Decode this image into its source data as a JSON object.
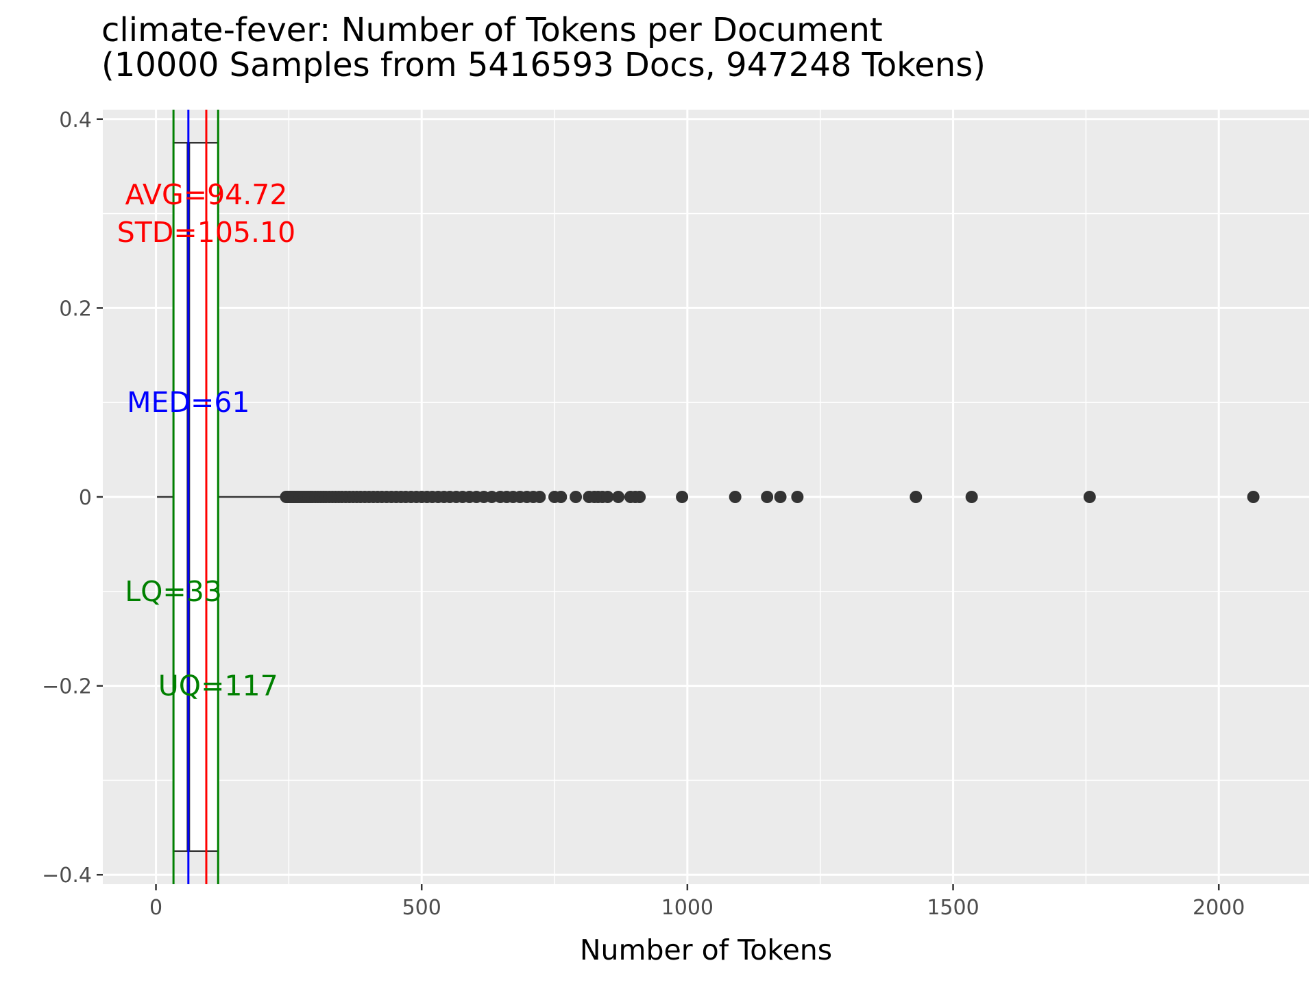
{
  "chart_data": {
    "type": "boxplot",
    "title": "climate-fever: Number of Tokens per Document",
    "subtitle": "(10000 Samples from 5416593 Docs, 947248 Tokens)",
    "xlabel": "Number of Tokens",
    "ylabel": "",
    "xlim": [
      -100,
      2170
    ],
    "ylim": [
      -0.41,
      0.41
    ],
    "x_ticks": [
      0,
      500,
      1000,
      1500,
      2000
    ],
    "x_tick_labels": [
      "0",
      "500",
      "1000",
      "1500",
      "2000"
    ],
    "x_minor_ticks": [
      250,
      750,
      1250,
      1750
    ],
    "y_ticks": [
      -0.4,
      -0.2,
      0,
      0.2,
      0.4
    ],
    "y_tick_labels": [
      "−0.4",
      "−0.2",
      "0",
      "0.2",
      "0.4"
    ],
    "y_minor_ticks": [
      -0.3,
      -0.1,
      0.1,
      0.3
    ],
    "grid": true,
    "panel_background": "#EBEBEB",
    "box": {
      "y_center": 0,
      "y_half_height": 0.375,
      "whisker_low": 2,
      "q1": 33,
      "median": 61,
      "q3": 117,
      "whisker_high": 243,
      "outline_color": "#333333"
    },
    "outliers": [
      245,
      248,
      250,
      253,
      256,
      259,
      262,
      265,
      268,
      271,
      275,
      279,
      283,
      287,
      291,
      295,
      300,
      305,
      310,
      315,
      320,
      326,
      332,
      338,
      344,
      350,
      357,
      364,
      371,
      378,
      385,
      393,
      401,
      409,
      417,
      425,
      434,
      443,
      452,
      461,
      470,
      480,
      490,
      500,
      510,
      520,
      531,
      542,
      553,
      565,
      577,
      590,
      603,
      617,
      632,
      648,
      660,
      672,
      685,
      698,
      710,
      722,
      750,
      762,
      790,
      815,
      825,
      832,
      840,
      850,
      870,
      893,
      902,
      910,
      990,
      1090,
      1150,
      1175,
      1207,
      1430,
      1535,
      1757,
      2065
    ],
    "reference_lines": [
      {
        "name": "LQ",
        "x": 33,
        "color": "#008000"
      },
      {
        "name": "UQ",
        "x": 117,
        "color": "#008000"
      },
      {
        "name": "MED",
        "x": 61,
        "color": "#0000FF"
      },
      {
        "name": "AVG",
        "x": 94.72,
        "color": "#FF0000"
      }
    ],
    "annotations": [
      {
        "text": "AVG=94.72",
        "x": 94.72,
        "y": 0.32,
        "color": "#FF0000"
      },
      {
        "text": "STD=105.10",
        "x": 94.72,
        "y": 0.28,
        "color": "#FF0000"
      },
      {
        "text": "MED=61",
        "x": 61,
        "y": 0.1,
        "color": "#0000FF"
      },
      {
        "text": "LQ=33",
        "x": 33,
        "y": -0.1,
        "color": "#008000"
      },
      {
        "text": "UQ=117",
        "x": 117,
        "y": -0.2,
        "color": "#008000"
      }
    ],
    "point_color": "#333333"
  }
}
